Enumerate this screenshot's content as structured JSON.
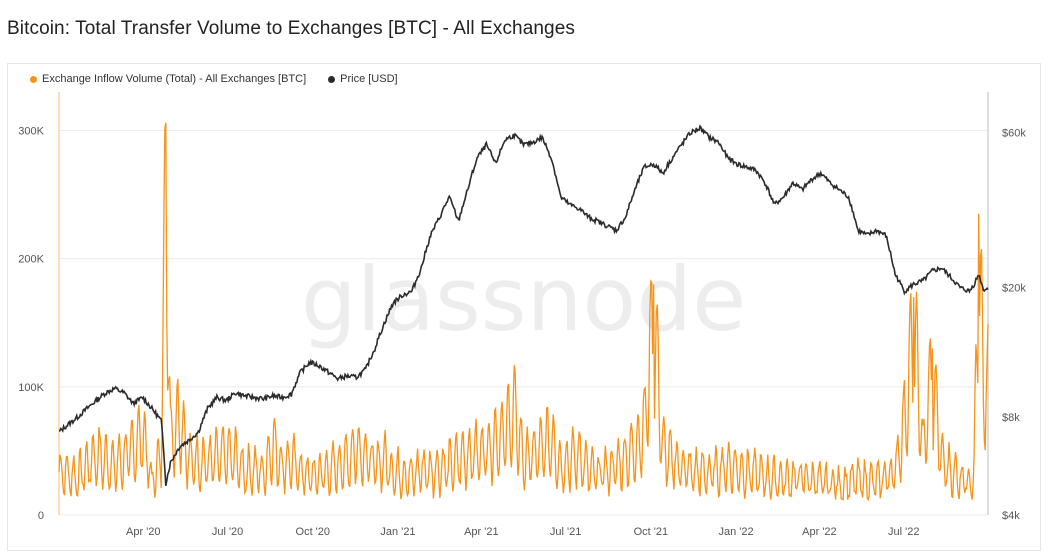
{
  "title": "Bitcoin: Total Transfer Volume to Exchanges [BTC] - All Exchanges",
  "watermark": "glassnode",
  "colors": {
    "inflow": "#f7931a",
    "price": "#2b2b2b",
    "grid": "#ececec"
  },
  "chart_data": {
    "type": "line",
    "title": "Bitcoin: Total Transfer Volume to Exchanges [BTC] - All Exchanges",
    "legend_position": "top-left",
    "grid": true,
    "x_ticks": [
      "Apr '20",
      "Jul '20",
      "Oct '20",
      "Jan '21",
      "Apr '21",
      "Jul '21",
      "Oct '21",
      "Jan '22",
      "Apr '22",
      "Jul '22"
    ],
    "x_range": [
      "2020-01-01",
      "2022-09-30"
    ],
    "left_axis": {
      "ticks": [
        "0",
        "100K",
        "200K",
        "300K"
      ],
      "values": [
        0,
        100000,
        200000,
        300000
      ],
      "ylim": [
        0,
        330000
      ]
    },
    "right_axis": {
      "scale": "log",
      "ticks": [
        "$4k",
        "$8k",
        "$20k",
        "$60k"
      ],
      "values": [
        4000,
        8000,
        20000,
        60000
      ],
      "ylim": [
        4000,
        80000
      ]
    },
    "series": [
      {
        "name": "Exchange Inflow Volume (Total) - All Exchanges [BTC]",
        "axis": "left",
        "type": "line",
        "points": [
          [
            0.0,
            40000
          ],
          [
            0.02,
            35000
          ],
          [
            0.04,
            55000
          ],
          [
            0.06,
            45000
          ],
          [
            0.08,
            60000
          ],
          [
            0.09,
            75000
          ],
          [
            0.1,
            30000
          ],
          [
            0.11,
            55000
          ],
          [
            0.115,
            306000
          ],
          [
            0.12,
            70000
          ],
          [
            0.13,
            90000
          ],
          [
            0.14,
            50000
          ],
          [
            0.16,
            48000
          ],
          [
            0.18,
            55000
          ],
          [
            0.19,
            52000
          ],
          [
            0.2,
            40000
          ],
          [
            0.21,
            42000
          ],
          [
            0.22,
            38000
          ],
          [
            0.23,
            65000
          ],
          [
            0.24,
            45000
          ],
          [
            0.25,
            50000
          ],
          [
            0.26,
            40000
          ],
          [
            0.27,
            35000
          ],
          [
            0.28,
            38000
          ],
          [
            0.29,
            40000
          ],
          [
            0.3,
            45000
          ],
          [
            0.31,
            50000
          ],
          [
            0.32,
            60000
          ],
          [
            0.33,
            55000
          ],
          [
            0.34,
            45000
          ],
          [
            0.35,
            50000
          ],
          [
            0.36,
            40000
          ],
          [
            0.37,
            38000
          ],
          [
            0.38,
            35000
          ],
          [
            0.39,
            42000
          ],
          [
            0.4,
            40000
          ],
          [
            0.42,
            45000
          ],
          [
            0.44,
            55000
          ],
          [
            0.46,
            60000
          ],
          [
            0.48,
            75000
          ],
          [
            0.49,
            95000
          ],
          [
            0.5,
            50000
          ],
          [
            0.51,
            55000
          ],
          [
            0.52,
            60000
          ],
          [
            0.53,
            70000
          ],
          [
            0.54,
            45000
          ],
          [
            0.55,
            50000
          ],
          [
            0.56,
            55000
          ],
          [
            0.57,
            40000
          ],
          [
            0.58,
            38000
          ],
          [
            0.6,
            45000
          ],
          [
            0.62,
            60000
          ],
          [
            0.63,
            80000
          ],
          [
            0.64,
            180000
          ],
          [
            0.65,
            60000
          ],
          [
            0.66,
            50000
          ],
          [
            0.68,
            40000
          ],
          [
            0.7,
            38000
          ],
          [
            0.72,
            45000
          ],
          [
            0.74,
            40000
          ],
          [
            0.76,
            35000
          ],
          [
            0.78,
            32000
          ],
          [
            0.8,
            35000
          ],
          [
            0.82,
            30000
          ],
          [
            0.84,
            28000
          ],
          [
            0.86,
            32000
          ],
          [
            0.88,
            30000
          ],
          [
            0.9,
            40000
          ],
          [
            0.91,
            85000
          ],
          [
            0.92,
            170000
          ],
          [
            0.93,
            60000
          ],
          [
            0.94,
            130000
          ],
          [
            0.95,
            50000
          ],
          [
            0.96,
            40000
          ],
          [
            0.97,
            35000
          ],
          [
            0.98,
            32000
          ],
          [
            0.985,
            40000
          ],
          [
            0.99,
            235000
          ],
          [
            0.995,
            115000
          ]
        ]
      },
      {
        "name": "Price [USD]",
        "axis": "right",
        "type": "line",
        "points": [
          [
            0.0,
            7200
          ],
          [
            0.02,
            8000
          ],
          [
            0.04,
            9000
          ],
          [
            0.05,
            9500
          ],
          [
            0.06,
            9800
          ],
          [
            0.07,
            9500
          ],
          [
            0.08,
            8800
          ],
          [
            0.09,
            9200
          ],
          [
            0.1,
            8500
          ],
          [
            0.11,
            7800
          ],
          [
            0.115,
            5000
          ],
          [
            0.12,
            5800
          ],
          [
            0.13,
            6500
          ],
          [
            0.14,
            6800
          ],
          [
            0.15,
            7200
          ],
          [
            0.16,
            8500
          ],
          [
            0.17,
            9200
          ],
          [
            0.18,
            9000
          ],
          [
            0.19,
            9500
          ],
          [
            0.2,
            9300
          ],
          [
            0.21,
            9200
          ],
          [
            0.22,
            9100
          ],
          [
            0.23,
            9300
          ],
          [
            0.24,
            9200
          ],
          [
            0.25,
            9400
          ],
          [
            0.26,
            11000
          ],
          [
            0.27,
            11800
          ],
          [
            0.28,
            11500
          ],
          [
            0.29,
            11000
          ],
          [
            0.3,
            10500
          ],
          [
            0.31,
            10700
          ],
          [
            0.32,
            10600
          ],
          [
            0.33,
            11200
          ],
          [
            0.34,
            13000
          ],
          [
            0.35,
            15500
          ],
          [
            0.36,
            18000
          ],
          [
            0.37,
            19000
          ],
          [
            0.38,
            19500
          ],
          [
            0.39,
            23000
          ],
          [
            0.4,
            29000
          ],
          [
            0.41,
            33000
          ],
          [
            0.42,
            38000
          ],
          [
            0.43,
            32000
          ],
          [
            0.44,
            40000
          ],
          [
            0.45,
            50000
          ],
          [
            0.46,
            55000
          ],
          [
            0.47,
            48000
          ],
          [
            0.48,
            57000
          ],
          [
            0.49,
            59000
          ],
          [
            0.5,
            55000
          ],
          [
            0.51,
            56000
          ],
          [
            0.52,
            58000
          ],
          [
            0.53,
            50000
          ],
          [
            0.54,
            38000
          ],
          [
            0.55,
            36000
          ],
          [
            0.56,
            35000
          ],
          [
            0.57,
            33000
          ],
          [
            0.58,
            32000
          ],
          [
            0.59,
            31000
          ],
          [
            0.6,
            30000
          ],
          [
            0.61,
            33000
          ],
          [
            0.62,
            40000
          ],
          [
            0.63,
            47000
          ],
          [
            0.64,
            48000
          ],
          [
            0.65,
            45000
          ],
          [
            0.66,
            50000
          ],
          [
            0.67,
            55000
          ],
          [
            0.68,
            60000
          ],
          [
            0.69,
            62000
          ],
          [
            0.7,
            58000
          ],
          [
            0.71,
            56000
          ],
          [
            0.72,
            50000
          ],
          [
            0.73,
            48000
          ],
          [
            0.74,
            47000
          ],
          [
            0.75,
            46000
          ],
          [
            0.76,
            42000
          ],
          [
            0.77,
            36000
          ],
          [
            0.78,
            38000
          ],
          [
            0.79,
            42000
          ],
          [
            0.8,
            40000
          ],
          [
            0.81,
            43000
          ],
          [
            0.82,
            45000
          ],
          [
            0.83,
            42000
          ],
          [
            0.84,
            40000
          ],
          [
            0.85,
            38000
          ],
          [
            0.86,
            30000
          ],
          [
            0.87,
            29000
          ],
          [
            0.88,
            30000
          ],
          [
            0.89,
            29000
          ],
          [
            0.9,
            22000
          ],
          [
            0.91,
            19500
          ],
          [
            0.92,
            20500
          ],
          [
            0.93,
            21000
          ],
          [
            0.94,
            22500
          ],
          [
            0.95,
            23000
          ],
          [
            0.96,
            21500
          ],
          [
            0.97,
            20000
          ],
          [
            0.98,
            19500
          ],
          [
            0.985,
            20500
          ],
          [
            0.99,
            22000
          ],
          [
            0.995,
            19800
          ]
        ]
      }
    ]
  }
}
